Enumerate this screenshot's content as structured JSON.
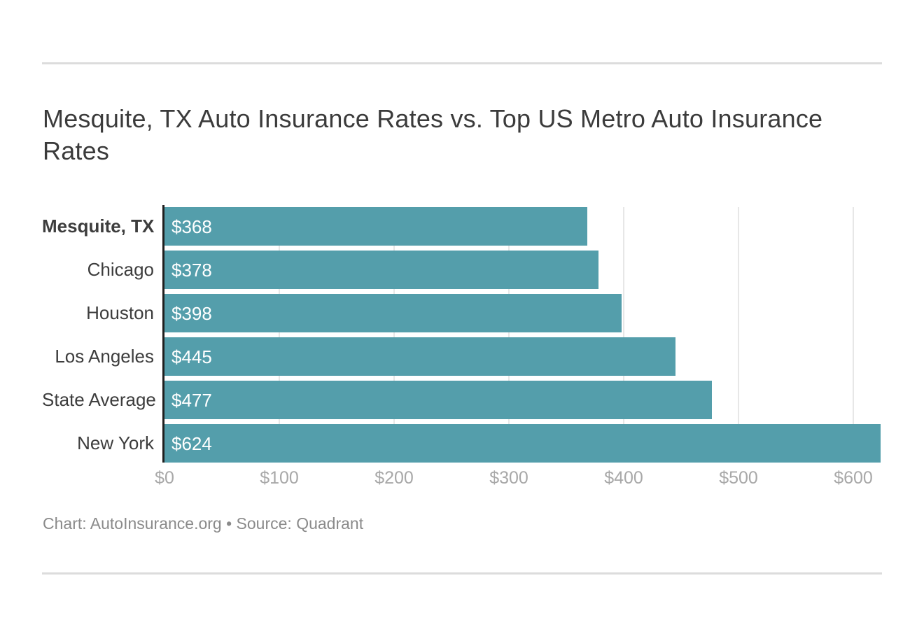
{
  "page": {
    "background": "#ffffff"
  },
  "title": {
    "text": "Mesquite, TX Auto Insurance Rates vs. Top US Metro Auto Insurance Rates",
    "lines": [
      "Mesquite, TX Auto Insurance Rates vs. Top US Metro Auto Insurance",
      "Rates"
    ]
  },
  "footer": {
    "credit": "Chart: AutoInsurance.org • Source: Quadrant"
  },
  "colors": {
    "bar": "#549eab",
    "axis_line": "#1f1f1f",
    "gridline": "#e7e7e7",
    "title_text": "#3b3b3b",
    "category_text": "#3d3d3d",
    "value_text": "#ffffff",
    "tick_text": "#a8a8a8",
    "footer_text": "#8a8a8a",
    "divider": "#dcdcdc",
    "page_bg": "#ffffff"
  },
  "chart_data": {
    "type": "bar",
    "orientation": "horizontal",
    "title": "Mesquite, TX Auto Insurance Rates vs. Top US Metro Auto Insurance Rates",
    "categories": [
      "Mesquite, TX",
      "Chicago",
      "Houston",
      "Los Angeles",
      "State Average",
      "New York"
    ],
    "values": [
      368,
      378,
      398,
      445,
      477,
      624
    ],
    "value_labels": [
      "$368",
      "$378",
      "$398",
      "$445",
      "$477",
      "$624"
    ],
    "highlight_category": "Mesquite, TX",
    "x_ticks": [
      {
        "value": 0,
        "label": "$0"
      },
      {
        "value": 100,
        "label": "$100"
      },
      {
        "value": 200,
        "label": "$200"
      },
      {
        "value": 300,
        "label": "$300"
      },
      {
        "value": 400,
        "label": "$400"
      },
      {
        "value": 500,
        "label": "$500"
      },
      {
        "value": 600,
        "label": "$600"
      }
    ],
    "xlim": [
      0,
      625
    ],
    "grid": "vertical",
    "legend": "none",
    "value_labels_position": "inside-start",
    "bar_color": "#549eab"
  }
}
